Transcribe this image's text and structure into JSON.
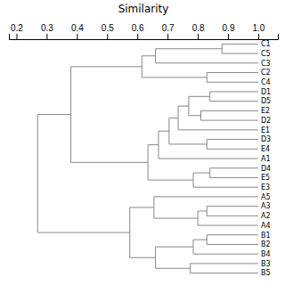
{
  "chart_data": {
    "type": "dendrogram",
    "x_label": "Similarity",
    "categories": [
      "C1",
      "C5",
      "C3",
      "C2",
      "C4",
      "D1",
      "D5",
      "E2",
      "D2",
      "E1",
      "D3",
      "E4",
      "A1",
      "D4",
      "E5",
      "E3",
      "A5",
      "A3",
      "A2",
      "A4",
      "B1",
      "B2",
      "B4",
      "B3",
      "B5"
    ],
    "leaf_value": 1.0,
    "color": "#888888",
    "xlim": [
      0.175,
      1.065
    ],
    "xticks": [
      0.2,
      0.3,
      0.4,
      0.5,
      0.6,
      0.7,
      0.8,
      0.9,
      {
        "value": 1.0,
        "label": "1.0"
      }
    ],
    "merges": [
      {
        "left": [
          0
        ],
        "right": [
          1
        ],
        "value": 0.88
      },
      {
        "left": [
          0,
          1
        ],
        "right": [
          2
        ],
        "value": 0.66
      },
      {
        "left": [
          3
        ],
        "right": [
          4
        ],
        "value": 0.83
      },
      {
        "left": [
          0,
          1,
          2
        ],
        "right": [
          3,
          4
        ],
        "value": 0.615
      },
      {
        "left": [
          5
        ],
        "right": [
          6
        ],
        "value": 0.84
      },
      {
        "left": [
          7
        ],
        "right": [
          8
        ],
        "value": 0.81
      },
      {
        "left": [
          5,
          6
        ],
        "right": [
          7,
          8
        ],
        "value": 0.77
      },
      {
        "left": [
          10
        ],
        "right": [
          11
        ],
        "value": 0.83
      },
      {
        "left": [
          5,
          6,
          7,
          8
        ],
        "right": [
          9
        ],
        "value": 0.735
      },
      {
        "left": [
          5,
          6,
          7,
          8,
          9
        ],
        "right": [
          10,
          11
        ],
        "value": 0.705
      },
      {
        "left": [
          5,
          6,
          7,
          8,
          9,
          10,
          11
        ],
        "right": [
          12
        ],
        "value": 0.67
      },
      {
        "left": [
          13
        ],
        "right": [
          14
        ],
        "value": 0.84
      },
      {
        "left": [
          13,
          14
        ],
        "right": [
          15
        ],
        "value": 0.785
      },
      {
        "left": [
          5,
          6,
          7,
          8,
          9,
          10,
          11,
          12
        ],
        "right": [
          13,
          14,
          15
        ],
        "value": 0.635
      },
      {
        "left": [
          0,
          1,
          2,
          3,
          4
        ],
        "right": [
          5,
          6,
          7,
          8,
          9,
          10,
          11,
          12,
          13,
          14,
          15
        ],
        "value": 0.38
      },
      {
        "left": [
          17
        ],
        "right": [
          18
        ],
        "value": 0.83
      },
      {
        "left": [
          17,
          18
        ],
        "right": [
          19
        ],
        "value": 0.8
      },
      {
        "left": [
          16
        ],
        "right": [
          17,
          18,
          19
        ],
        "value": 0.655
      },
      {
        "left": [
          20
        ],
        "right": [
          21
        ],
        "value": 0.83
      },
      {
        "left": [
          20,
          21
        ],
        "right": [
          22
        ],
        "value": 0.785
      },
      {
        "left": [
          23
        ],
        "right": [
          24
        ],
        "value": 0.775
      },
      {
        "left": [
          20,
          21,
          22
        ],
        "right": [
          23,
          24
        ],
        "value": 0.66
      },
      {
        "left": [
          16,
          17,
          18,
          19
        ],
        "right": [
          20,
          21,
          22,
          23,
          24
        ],
        "value": 0.575
      },
      {
        "left": [
          0,
          1,
          2,
          3,
          4,
          5,
          6,
          7,
          8,
          9,
          10,
          11,
          12,
          13,
          14,
          15
        ],
        "right": [
          16,
          17,
          18,
          19,
          20,
          21,
          22,
          23,
          24
        ],
        "value": 0.27
      }
    ]
  }
}
